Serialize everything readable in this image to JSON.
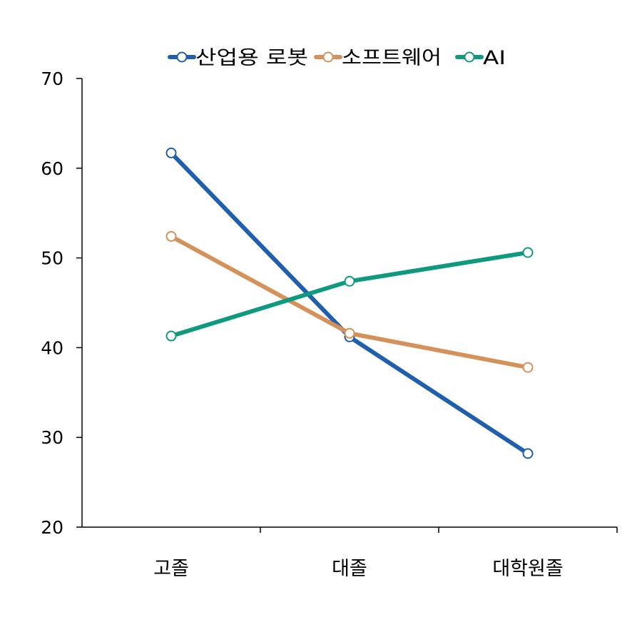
{
  "chart_data": {
    "type": "line",
    "title": "",
    "xlabel": "",
    "ylabel": "",
    "categories": [
      "고졸",
      "대졸",
      "대학원졸"
    ],
    "ylim": [
      20,
      70
    ],
    "yticks": [
      "20",
      "30",
      "40",
      "50",
      "60",
      "70"
    ],
    "grid": false,
    "legend_position": "top",
    "series": [
      {
        "name": "산업용 로봇",
        "color": "#1f5fad",
        "values": [
          61.7,
          41.2,
          28.2
        ]
      },
      {
        "name": "소프트웨어",
        "color": "#d4915a",
        "values": [
          52.4,
          41.6,
          37.8
        ]
      },
      {
        "name": "AI",
        "color": "#0f9a80",
        "values": [
          41.3,
          47.4,
          50.6
        ]
      }
    ]
  }
}
